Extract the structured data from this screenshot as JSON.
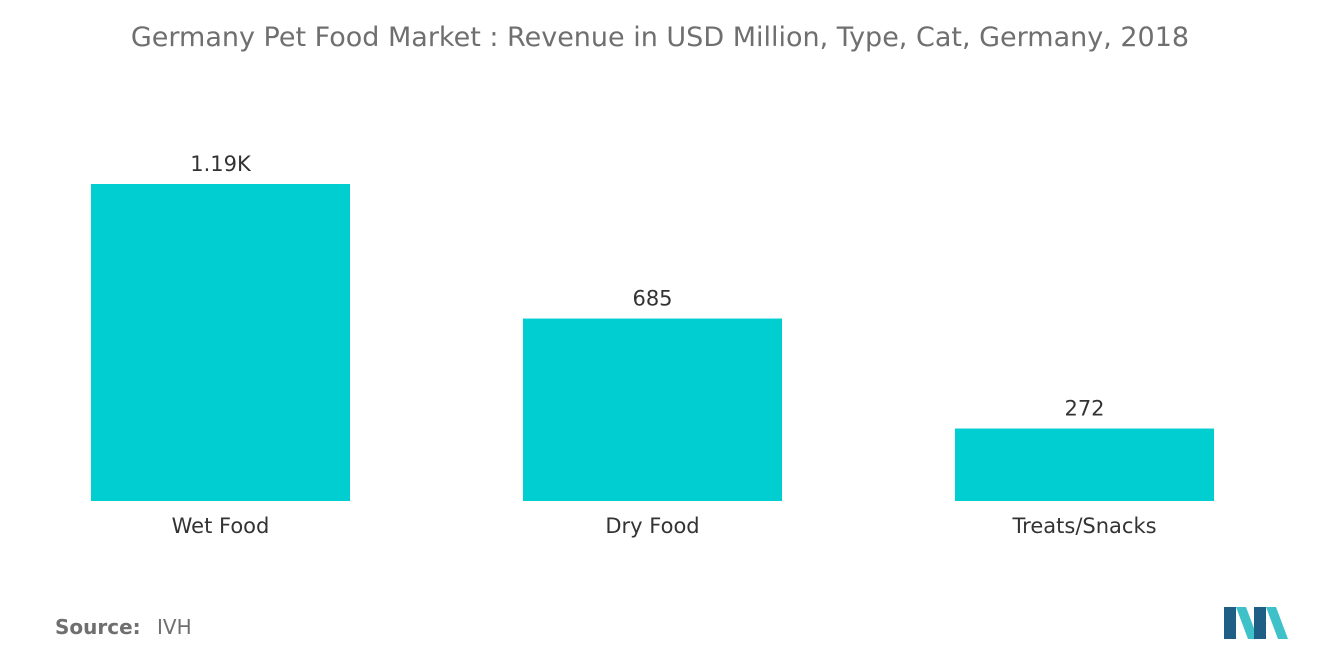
{
  "title": "Germany Pet Food Market : Revenue in USD Million, Type, Cat, Germany, 2018",
  "source": {
    "label": "Source:",
    "value": "IVH"
  },
  "colors": {
    "bar": "#00ced1",
    "text": "#333333",
    "muted": "#6f6f6f",
    "logo_dark": "#1f5f86",
    "logo_light": "#3fc1c9"
  },
  "logo_icon": "mordor-intelligence-logo",
  "chart_data": {
    "type": "bar",
    "title": "Germany Pet Food Market : Revenue in USD Million, Type, Cat, Germany, 2018",
    "categories": [
      "Wet Food",
      "Dry Food",
      "Treats/Snacks"
    ],
    "values": [
      1190,
      685,
      272
    ],
    "data_labels": [
      "1.19K",
      "685",
      "272"
    ],
    "xlabel": "",
    "ylabel": "",
    "ylim": [
      0,
      1190
    ],
    "grid": false,
    "legend": "none"
  }
}
